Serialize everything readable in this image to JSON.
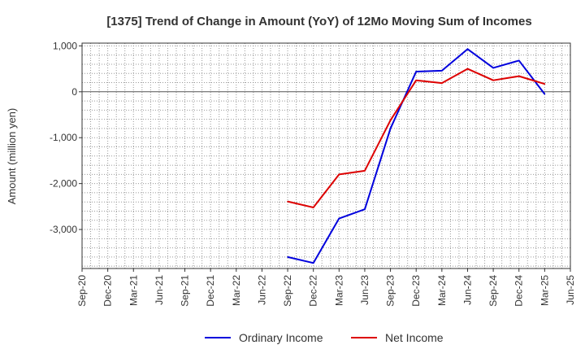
{
  "chart_data": {
    "type": "line",
    "title": "[1375]  Trend of Change in Amount (YoY) of 12Mo Moving Sum of Incomes",
    "xlabel": "",
    "ylabel": "Amount (million yen)",
    "categories": [
      "Sep-20",
      "Dec-20",
      "Mar-21",
      "Jun-21",
      "Sep-21",
      "Dec-21",
      "Mar-22",
      "Jun-22",
      "Sep-22",
      "Dec-22",
      "Mar-23",
      "Jun-23",
      "Sep-23",
      "Dec-23",
      "Mar-24",
      "Jun-24",
      "Sep-24",
      "Dec-24",
      "Mar-25",
      "Jun-25"
    ],
    "y_ticks": [
      1000,
      0,
      -1000,
      -2000,
      -3000
    ],
    "y_tick_labels": [
      "1,000",
      "0",
      "-1,000",
      "-2,000",
      "-3,000"
    ],
    "ylim": [
      -3850,
      1060
    ],
    "grid": true,
    "legend_position": "bottom",
    "series": [
      {
        "name": "Ordinary Income",
        "color": "#0000dd",
        "values": [
          null,
          null,
          null,
          null,
          null,
          null,
          null,
          null,
          -3600,
          -3730,
          -2760,
          -2560,
          -800,
          440,
          460,
          930,
          520,
          680,
          -50,
          null
        ]
      },
      {
        "name": "Net Income",
        "color": "#dd0000",
        "values": [
          null,
          null,
          null,
          null,
          null,
          null,
          null,
          null,
          -2390,
          -2520,
          -1800,
          -1720,
          -620,
          250,
          190,
          500,
          250,
          340,
          170,
          null
        ]
      }
    ]
  }
}
